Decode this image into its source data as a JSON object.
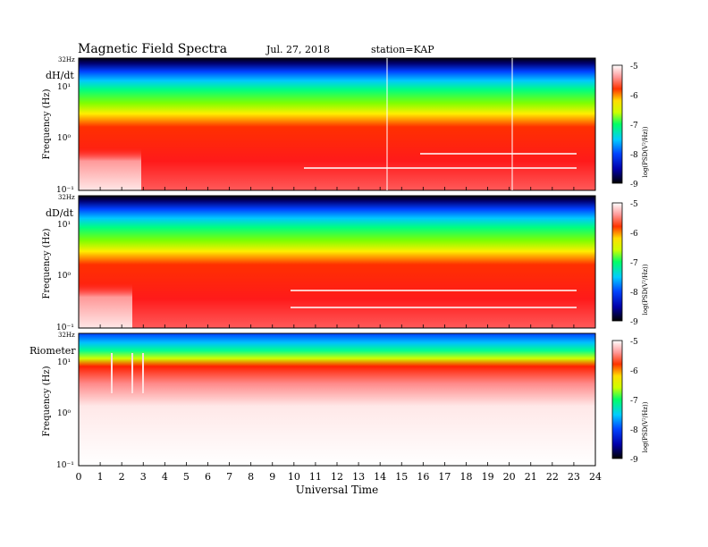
{
  "header": {
    "title": "Magnetic Field Spectra",
    "date": "Jul. 27, 2018",
    "station": "station=KAP"
  },
  "chart_data": [
    {
      "type": "heatmap",
      "panel_label": "dH/dt",
      "ylabel": "Frequency (Hz)",
      "top_label": "32Hz",
      "y_ticks": [
        "10⁻¹",
        "10⁰",
        "10¹"
      ],
      "y_tick_values": [
        0.1,
        1,
        10
      ],
      "x_range": [
        0,
        24
      ],
      "y_range": [
        0.1,
        32
      ],
      "y_scale": "log",
      "colorbar": {
        "label": "log(PSD(V²/Hz))",
        "ticks": [
          "-5",
          "-6",
          "-7",
          "-8",
          "-9"
        ],
        "range": [
          -9,
          -5
        ]
      }
    },
    {
      "type": "heatmap",
      "panel_label": "dD/dt",
      "ylabel": "Frequency (Hz)",
      "top_label": "32Hz",
      "y_ticks": [
        "10⁻¹",
        "10⁰",
        "10¹"
      ],
      "y_tick_values": [
        0.1,
        1,
        10
      ],
      "x_range": [
        0,
        24
      ],
      "y_range": [
        0.1,
        32
      ],
      "y_scale": "log",
      "colorbar": {
        "label": "log(PSD(V²/Hz))",
        "ticks": [
          "-5",
          "-6",
          "-7",
          "-8",
          "-9"
        ],
        "range": [
          -9,
          -5
        ]
      }
    },
    {
      "type": "heatmap",
      "panel_label": "Riometer",
      "ylabel": "Frequency (Hz)",
      "top_label": "32Hz",
      "y_ticks": [
        "10⁻¹",
        "10⁰",
        "10¹"
      ],
      "y_tick_values": [
        0.1,
        1,
        10
      ],
      "x_range": [
        0,
        24
      ],
      "y_range": [
        0.1,
        32
      ],
      "y_scale": "log",
      "colorbar": {
        "label": "log(PSD(V²/Hz))",
        "ticks": [
          "-5",
          "-6",
          "-7",
          "-8",
          "-9"
        ],
        "range": [
          -9,
          -5
        ]
      }
    }
  ],
  "x_axis": {
    "label": "Universal Time",
    "ticks": [
      "0",
      "1",
      "2",
      "3",
      "4",
      "5",
      "6",
      "7",
      "8",
      "9",
      "10",
      "11",
      "12",
      "13",
      "14",
      "15",
      "16",
      "17",
      "18",
      "19",
      "20",
      "21",
      "22",
      "23",
      "24"
    ]
  }
}
